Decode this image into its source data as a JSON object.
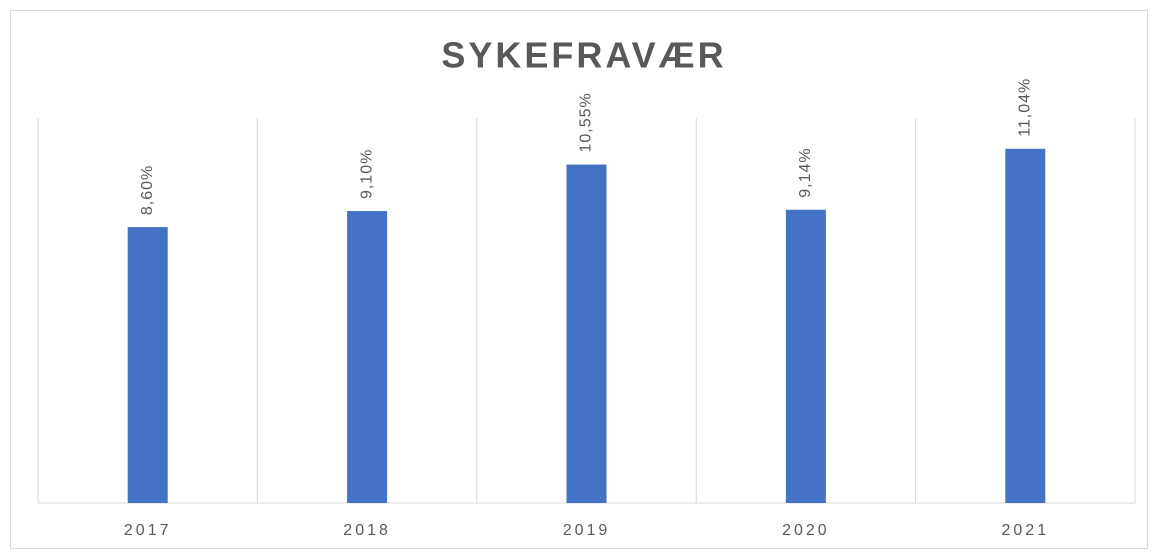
{
  "chart_data": {
    "type": "bar",
    "title": "SYKEFRAVÆR",
    "categories": [
      "2017",
      "2018",
      "2019",
      "2020",
      "2021"
    ],
    "values": [
      8.6,
      9.1,
      10.55,
      9.14,
      11.04
    ],
    "value_labels": [
      "8,60%",
      "9,10%",
      "10,55%",
      "9,14%",
      "11,04%"
    ],
    "color": "#4472c4",
    "ylim": [
      0,
      12
    ],
    "grid": "x"
  }
}
